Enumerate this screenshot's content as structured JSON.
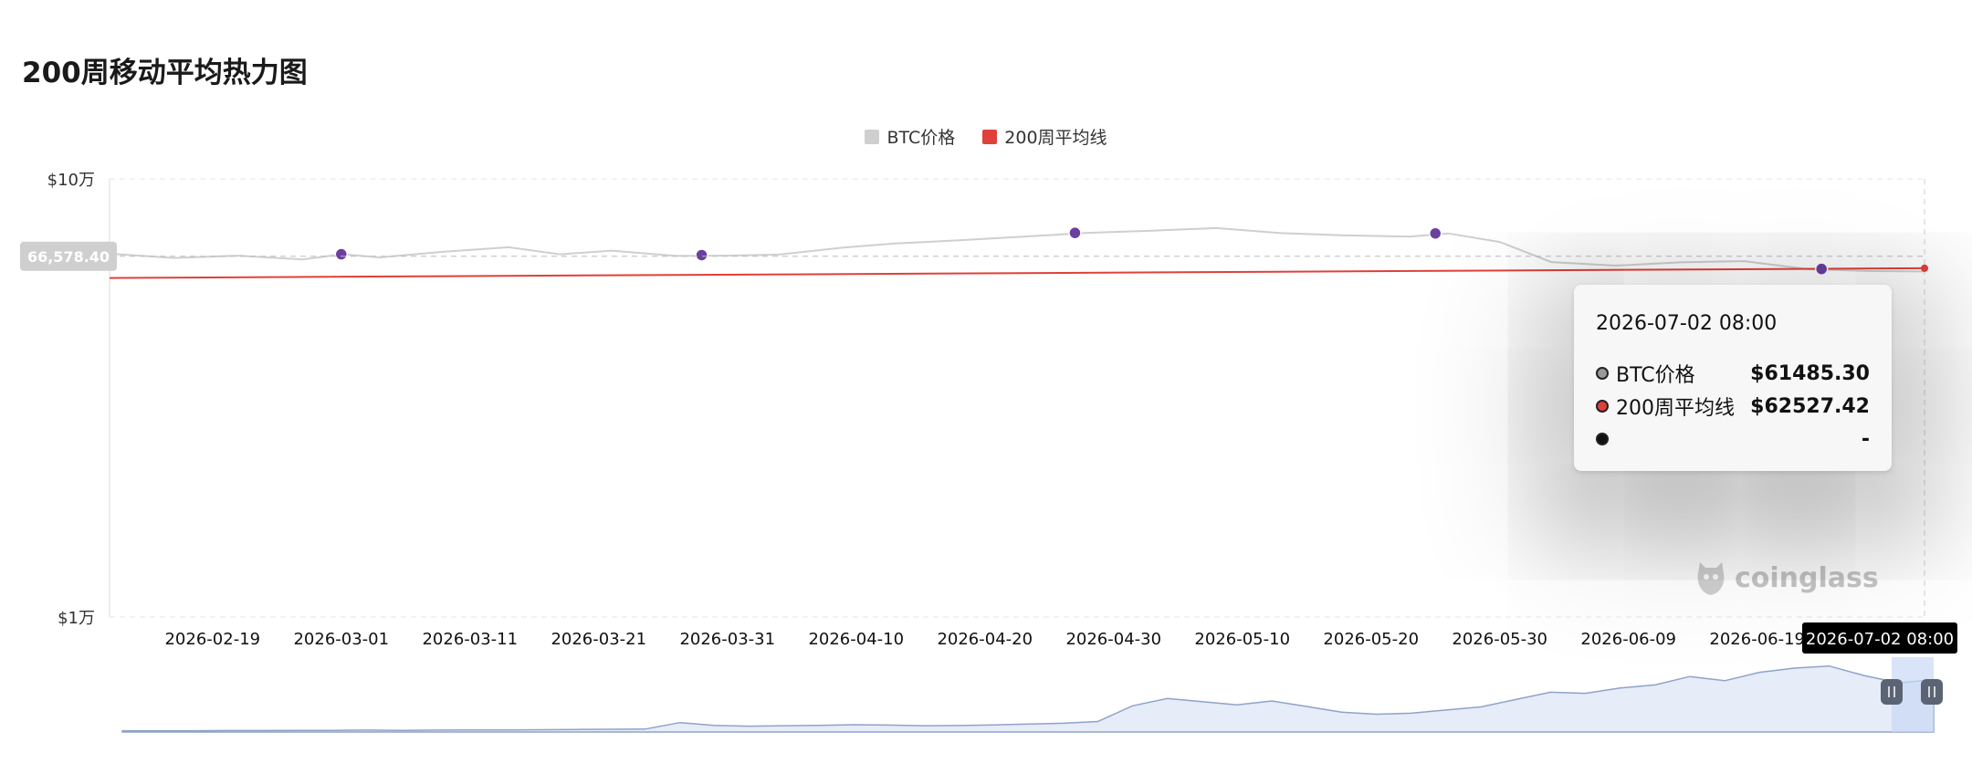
{
  "page": {
    "title": "200周移动平均热力图"
  },
  "colors": {
    "btc": "#cfcfcf",
    "ma": "#e0403a",
    "dot": "#6a3fa0"
  },
  "chart_data": {
    "type": "line",
    "title": "200周移动平均热力图",
    "y_scale": "log",
    "ylim": [
      10000,
      100000
    ],
    "y_ticks": [
      {
        "value": 100000,
        "label": "$10万"
      },
      {
        "value": 10000,
        "label": "$1万"
      }
    ],
    "x_range": [
      "2026-02-11",
      "2026-07-02"
    ],
    "x_ticks": [
      "2026-02-19",
      "2026-03-01",
      "2026-03-11",
      "2026-03-21",
      "2026-03-31",
      "2026-04-10",
      "2026-04-20",
      "2026-04-30",
      "2026-05-10",
      "2026-05-20",
      "2026-05-30",
      "2026-06-09",
      "2026-06-19"
    ],
    "grid": true,
    "legend": {
      "position": "top-center",
      "items": [
        "BTC价格",
        "200周平均线"
      ]
    },
    "series": [
      {
        "name": "BTC价格",
        "dates": [
          "2026-02-11",
          "2026-02-16",
          "2026-02-21",
          "2026-02-26",
          "2026-03-01",
          "2026-03-04",
          "2026-03-09",
          "2026-03-14",
          "2026-03-18",
          "2026-03-22",
          "2026-03-27",
          "2026-03-31",
          "2026-04-04",
          "2026-04-09",
          "2026-04-13",
          "2026-04-18",
          "2026-04-23",
          "2026-04-28",
          "2026-05-03",
          "2026-05-08",
          "2026-05-13",
          "2026-05-18",
          "2026-05-23",
          "2026-05-26",
          "2026-05-30",
          "2026-06-03",
          "2026-06-08",
          "2026-06-13",
          "2026-06-18",
          "2026-06-23",
          "2026-06-28",
          "2026-07-02"
        ],
        "values": [
          67500,
          66000,
          66800,
          65500,
          67300,
          66200,
          68200,
          69800,
          67300,
          68600,
          66700,
          66800,
          67200,
          69700,
          71200,
          72400,
          73800,
          75300,
          76200,
          77200,
          75200,
          74300,
          73800,
          75100,
          71800,
          64600,
          63400,
          64500,
          64900,
          62200,
          61600,
          61485.3
        ]
      },
      {
        "name": "200周平均线",
        "dates": [
          "2026-02-11",
          "2026-07-02"
        ],
        "values": [
          59400,
          62527.42
        ]
      }
    ],
    "markers": [
      {
        "date": "2026-03-01",
        "value": 67300
      },
      {
        "date": "2026-03-29",
        "value": 67000
      },
      {
        "date": "2026-04-27",
        "value": 75300
      },
      {
        "date": "2026-05-25",
        "value": 75100
      },
      {
        "date": "2026-06-24",
        "value": 62300
      }
    ],
    "crosshair": {
      "date": "2026-07-02 08:00",
      "y_readout": "66,578.40",
      "y_value": 66578.4
    },
    "navigator": {
      "values": [
        0.6,
        0.6,
        0.6,
        0.7,
        0.7,
        0.8,
        0.8,
        0.9,
        0.8,
        0.9,
        1.0,
        1.0,
        1.1,
        1.2,
        1.3,
        1.4,
        4.5,
        3.2,
        2.8,
        3.0,
        3.2,
        3.5,
        3.3,
        3.0,
        3.1,
        3.4,
        3.8,
        4.2,
        5.0,
        12.5,
        16.0,
        14.5,
        13.0,
        14.8,
        12.2,
        9.5,
        8.5,
        9.0,
        10.5,
        12.0,
        15.5,
        19.0,
        18.5,
        21.0,
        22.5,
        26.5,
        24.5,
        28.5,
        30.5,
        31.5,
        27.0,
        23.5,
        25.0
      ]
    }
  },
  "tooltip": {
    "date": "2026-07-02 08:00",
    "rows": [
      {
        "label": "BTC价格",
        "value": "$61485.30",
        "dot_fill": "#9a9a9a"
      },
      {
        "label": "200周平均线",
        "value": "$62527.42",
        "dot_fill": "#e0403a"
      },
      {
        "label": "",
        "value": "-",
        "dot_fill": "#111111"
      }
    ]
  },
  "watermark": {
    "text": "coinglass"
  }
}
